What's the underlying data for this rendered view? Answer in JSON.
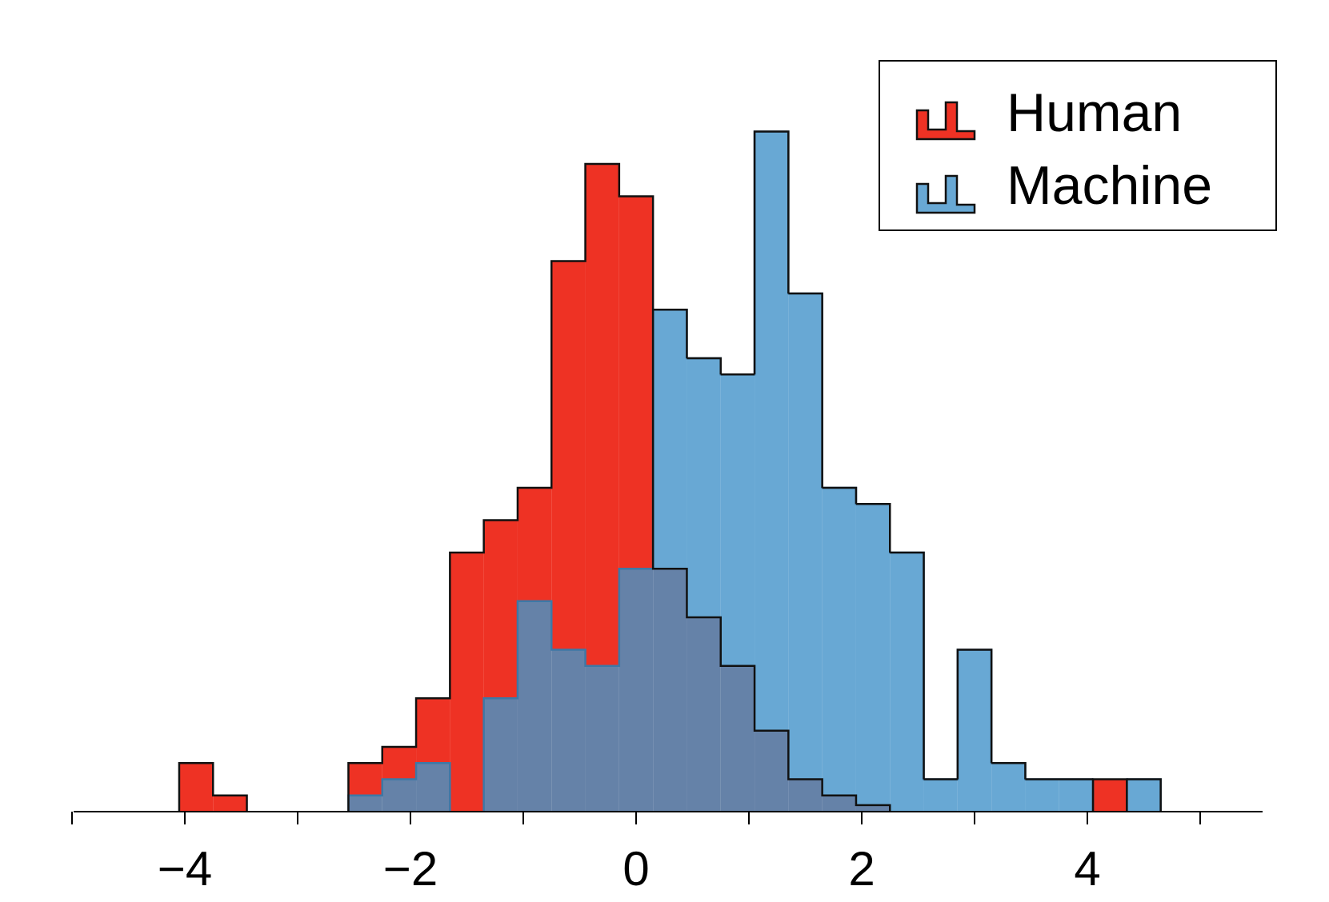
{
  "chart_data": {
    "type": "histogram",
    "title": "",
    "xlabel": "",
    "ylabel": "",
    "xlim": [
      -5.0,
      5.0
    ],
    "ylim": [
      0,
      21
    ],
    "grid": false,
    "legend_position": "top-right",
    "x_ticks": [
      -4,
      -2,
      0,
      2,
      4
    ],
    "x_tick_labels": [
      "−4",
      "−2",
      "0",
      "2",
      "4"
    ],
    "x_minor_ticks": [
      -5,
      -3,
      -1,
      1,
      3,
      5
    ],
    "bin_edges": [
      -4.05,
      -3.75,
      -3.45,
      -3.15,
      -2.85,
      -2.55,
      -2.25,
      -1.95,
      -1.65,
      -1.35,
      -1.05,
      -0.75,
      -0.45,
      -0.15,
      0.15,
      0.45,
      0.75,
      1.05,
      1.35,
      1.65,
      1.95,
      2.25,
      2.55,
      2.85,
      3.15,
      3.45,
      3.75,
      4.05,
      4.35,
      4.65
    ],
    "series": [
      {
        "name": "Human",
        "color": "#ee3224",
        "counts": [
          1.5,
          0.5,
          0,
          0,
          0,
          1.5,
          2,
          3.5,
          8,
          9,
          10,
          17,
          20,
          19,
          7.5,
          6,
          4.5,
          2.5,
          1,
          0.5,
          0.2,
          0,
          0,
          0,
          0,
          0,
          0,
          1.0,
          0
        ]
      },
      {
        "name": "Machine",
        "color": "#68a8d4",
        "counts": [
          0,
          0,
          0,
          0,
          0,
          0.5,
          1.0,
          1.5,
          0,
          3.5,
          6.5,
          5,
          4.5,
          7.5,
          15.5,
          14,
          13.5,
          21,
          16,
          10,
          9.5,
          8,
          1.0,
          5,
          1.5,
          1.0,
          1.0,
          0,
          1.0
        ]
      }
    ],
    "overlap_color": "#6582a8"
  }
}
